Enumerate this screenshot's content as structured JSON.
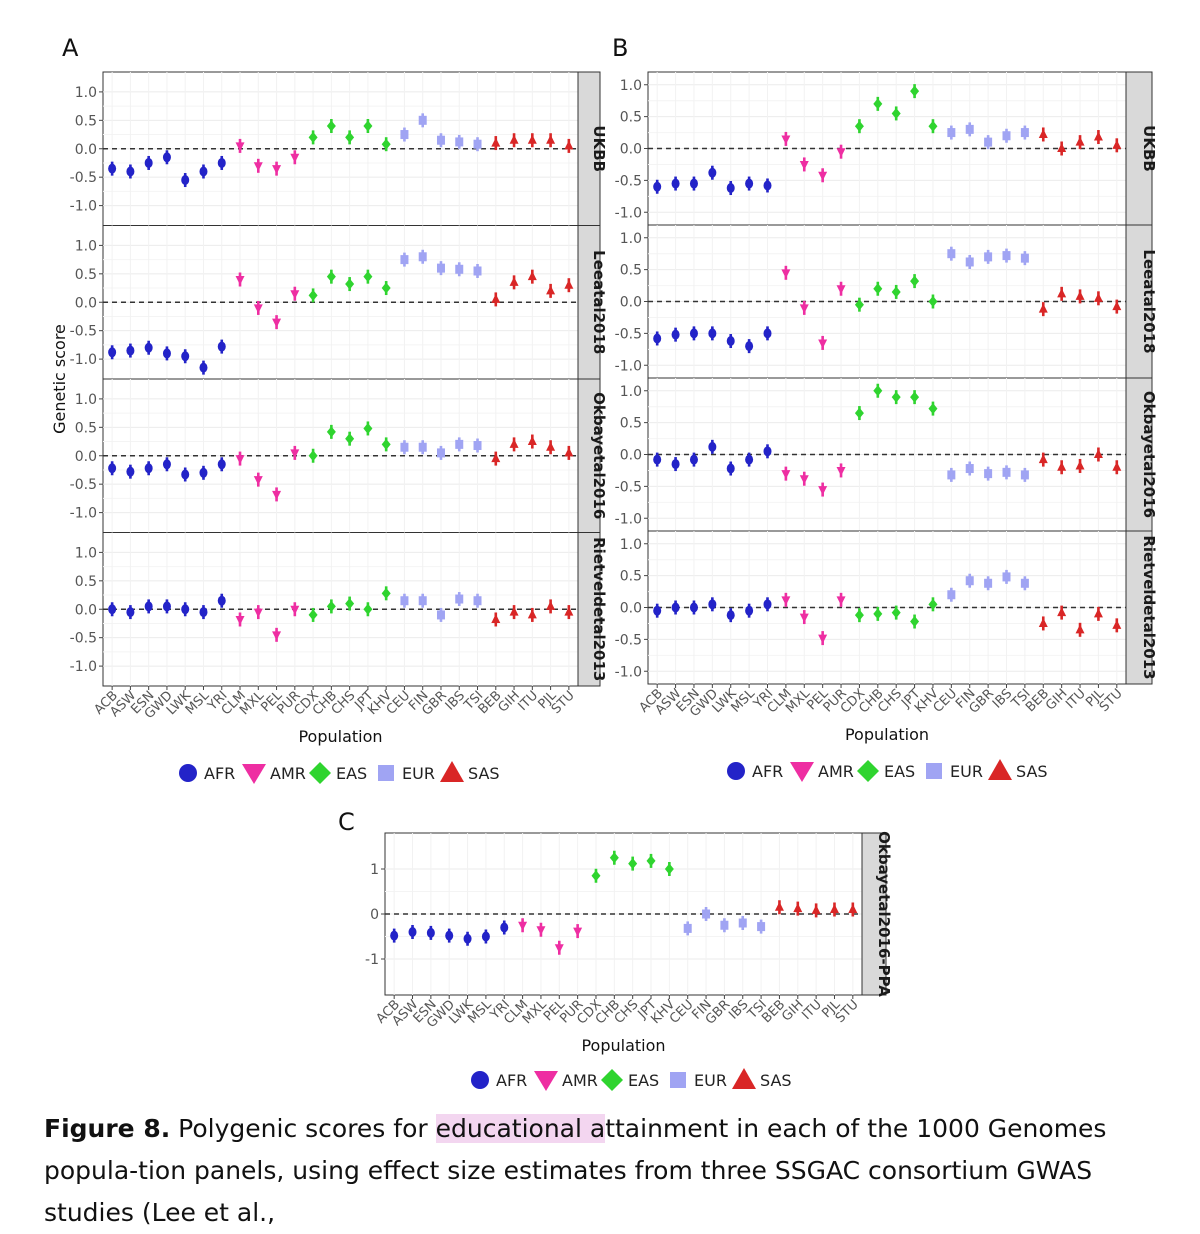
{
  "colors": {
    "AFR": "#2323c8",
    "AMR": "#ee2ea2",
    "EAS": "#2fd42f",
    "EUR": "#a0a4f3",
    "SAS": "#d92626"
  },
  "legend": [
    {
      "label": "AFR",
      "shape": "circle",
      "color": "#2323c8"
    },
    {
      "label": "AMR",
      "shape": "triangle-down",
      "color": "#ee2ea2"
    },
    {
      "label": "EAS",
      "shape": "diamond",
      "color": "#2fd42f"
    },
    {
      "label": "EUR",
      "shape": "square",
      "color": "#a0a4f3"
    },
    {
      "label": "SAS",
      "shape": "triangle-up",
      "color": "#d92626"
    }
  ],
  "caption": {
    "label": "Figure 8.",
    "text_before": " Polygenic scores for ",
    "highlight": "educational a",
    "text_after": "ttainment in each of the 1000 Genomes popula-tion panels, using effect size estimates from three SSGAC consortium GWAS studies (Lee et al.,"
  },
  "chart_data": [
    {
      "type": "scatter",
      "panel_label": "A",
      "xlabel": "Population",
      "ylabel": "Genetic score",
      "ylim": [
        -1.35,
        1.35
      ],
      "yticks": [
        1.0,
        0.5,
        0.0,
        -0.5,
        -1.0
      ],
      "ytick_labels": [
        "1.0",
        "0.5",
        "0.0",
        "-0.5",
        "-1.0"
      ],
      "reference_line": 0,
      "categories": [
        "ACB",
        "ASW",
        "ESN",
        "GWD",
        "LWK",
        "MSL",
        "YRI",
        "CLM",
        "MXL",
        "PEL",
        "PUR",
        "CDX",
        "CHB",
        "CHS",
        "JPT",
        "KHV",
        "CEU",
        "FIN",
        "GBR",
        "IBS",
        "TSI",
        "BEB",
        "GIH",
        "ITU",
        "PJL",
        "STU"
      ],
      "groups": [
        "AFR",
        "AFR",
        "AFR",
        "AFR",
        "AFR",
        "AFR",
        "AFR",
        "AMR",
        "AMR",
        "AMR",
        "AMR",
        "EAS",
        "EAS",
        "EAS",
        "EAS",
        "EAS",
        "EUR",
        "EUR",
        "EUR",
        "EUR",
        "EUR",
        "SAS",
        "SAS",
        "SAS",
        "SAS",
        "SAS"
      ],
      "facets": [
        {
          "name": "UKBB",
          "values": [
            -0.35,
            -0.4,
            -0.25,
            -0.15,
            -0.55,
            -0.4,
            -0.25,
            0.05,
            -0.3,
            -0.35,
            -0.15,
            0.2,
            0.4,
            0.2,
            0.4,
            0.08,
            0.25,
            0.5,
            0.15,
            0.12,
            0.08,
            0.1,
            0.15,
            0.15,
            0.15,
            0.05
          ]
        },
        {
          "name": "Leeatal2018",
          "values": [
            -0.88,
            -0.85,
            -0.8,
            -0.9,
            -0.95,
            -1.15,
            -0.78,
            0.4,
            -0.1,
            -0.35,
            0.15,
            0.12,
            0.45,
            0.32,
            0.45,
            0.25,
            0.75,
            0.8,
            0.6,
            0.58,
            0.55,
            0.05,
            0.35,
            0.45,
            0.2,
            0.3
          ]
        },
        {
          "name": "Okbayetal2016",
          "values": [
            -0.22,
            -0.28,
            -0.22,
            -0.15,
            -0.33,
            -0.3,
            -0.15,
            -0.05,
            -0.42,
            -0.68,
            0.05,
            0.0,
            0.42,
            0.3,
            0.48,
            0.2,
            0.15,
            0.15,
            0.05,
            0.2,
            0.18,
            -0.05,
            0.2,
            0.25,
            0.15,
            0.05
          ]
        },
        {
          "name": "Rietveldetal2013",
          "values": [
            0.0,
            -0.05,
            0.05,
            0.05,
            0.0,
            -0.05,
            0.15,
            -0.18,
            -0.05,
            -0.45,
            0.0,
            -0.1,
            0.05,
            0.1,
            0.0,
            0.28,
            0.15,
            0.15,
            -0.1,
            0.18,
            0.15,
            -0.18,
            -0.05,
            -0.1,
            0.05,
            -0.05
          ]
        }
      ]
    },
    {
      "type": "scatter",
      "panel_label": "B",
      "xlabel": "Population",
      "ylabel": "",
      "ylim": [
        -1.2,
        1.2
      ],
      "yticks": [
        1.0,
        0.5,
        0.0,
        -0.5,
        -1.0
      ],
      "ytick_labels": [
        "1.0",
        "0.5",
        "0.0",
        "-0.5",
        "-1.0"
      ],
      "reference_line": 0,
      "categories": [
        "ACB",
        "ASW",
        "ESN",
        "GWD",
        "LWK",
        "MSL",
        "YRI",
        "CLM",
        "MXL",
        "PEL",
        "PUR",
        "CDX",
        "CHB",
        "CHS",
        "JPT",
        "KHV",
        "CEU",
        "FIN",
        "GBR",
        "IBS",
        "TSI",
        "BEB",
        "GIH",
        "ITU",
        "PJL",
        "STU"
      ],
      "groups": [
        "AFR",
        "AFR",
        "AFR",
        "AFR",
        "AFR",
        "AFR",
        "AFR",
        "AMR",
        "AMR",
        "AMR",
        "AMR",
        "EAS",
        "EAS",
        "EAS",
        "EAS",
        "EAS",
        "EUR",
        "EUR",
        "EUR",
        "EUR",
        "EUR",
        "SAS",
        "SAS",
        "SAS",
        "SAS",
        "SAS"
      ],
      "facets": [
        {
          "name": "UKBB",
          "values": [
            -0.6,
            -0.55,
            -0.55,
            -0.38,
            -0.62,
            -0.55,
            -0.58,
            0.15,
            -0.25,
            -0.42,
            -0.05,
            0.35,
            0.7,
            0.55,
            0.9,
            0.35,
            0.25,
            0.3,
            0.1,
            0.2,
            0.25,
            0.22,
            0.0,
            0.1,
            0.18,
            0.05
          ]
        },
        {
          "name": "Leeatal2018",
          "values": [
            -0.58,
            -0.52,
            -0.5,
            -0.5,
            -0.62,
            -0.7,
            -0.5,
            0.45,
            -0.1,
            -0.65,
            0.2,
            -0.05,
            0.2,
            0.15,
            0.32,
            0.0,
            0.75,
            0.62,
            0.7,
            0.72,
            0.68,
            -0.12,
            0.12,
            0.08,
            0.05,
            -0.08
          ]
        },
        {
          "name": "Okbayetal2016",
          "values": [
            -0.08,
            -0.15,
            -0.08,
            0.12,
            -0.22,
            -0.08,
            0.05,
            -0.3,
            -0.38,
            -0.55,
            -0.25,
            0.65,
            1.0,
            0.9,
            0.9,
            0.72,
            -0.32,
            -0.22,
            -0.3,
            -0.28,
            -0.32,
            -0.08,
            -0.2,
            -0.18,
            0.0,
            -0.2
          ]
        },
        {
          "name": "Rietveldetal2013",
          "values": [
            -0.05,
            0.0,
            0.0,
            0.05,
            -0.12,
            -0.05,
            0.05,
            0.12,
            -0.15,
            -0.48,
            0.12,
            -0.12,
            -0.1,
            -0.08,
            -0.22,
            0.05,
            0.2,
            0.42,
            0.38,
            0.48,
            0.38,
            -0.25,
            -0.08,
            -0.35,
            -0.1,
            -0.28
          ]
        }
      ]
    },
    {
      "type": "scatter",
      "panel_label": "C",
      "xlabel": "Population",
      "ylabel": "",
      "ylim": [
        -1.8,
        1.8
      ],
      "yticks": [
        1,
        0,
        -1
      ],
      "ytick_labels": [
        "1",
        "0",
        "-1"
      ],
      "reference_line": 0,
      "categories": [
        "ACB",
        "ASW",
        "ESN",
        "GWD",
        "LWK",
        "MSL",
        "YRI",
        "CLM",
        "MXL",
        "PEL",
        "PUR",
        "CDX",
        "CHB",
        "CHS",
        "JPT",
        "KHV",
        "CEU",
        "FIN",
        "GBR",
        "IBS",
        "TSI",
        "BEB",
        "GIH",
        "ITU",
        "PJL",
        "STU"
      ],
      "groups": [
        "AFR",
        "AFR",
        "AFR",
        "AFR",
        "AFR",
        "AFR",
        "AFR",
        "AMR",
        "AMR",
        "AMR",
        "AMR",
        "EAS",
        "EAS",
        "EAS",
        "EAS",
        "EAS",
        "EUR",
        "EUR",
        "EUR",
        "EUR",
        "EUR",
        "SAS",
        "SAS",
        "SAS",
        "SAS",
        "SAS"
      ],
      "facets": [
        {
          "name": "Okbayetal2016-PPA",
          "values": [
            -0.48,
            -0.4,
            -0.42,
            -0.48,
            -0.55,
            -0.5,
            -0.3,
            -0.25,
            -0.35,
            -0.75,
            -0.38,
            0.85,
            1.25,
            1.12,
            1.18,
            1.0,
            -0.32,
            0.0,
            -0.25,
            -0.2,
            -0.28,
            0.15,
            0.12,
            0.08,
            0.1,
            0.1
          ]
        }
      ]
    }
  ]
}
